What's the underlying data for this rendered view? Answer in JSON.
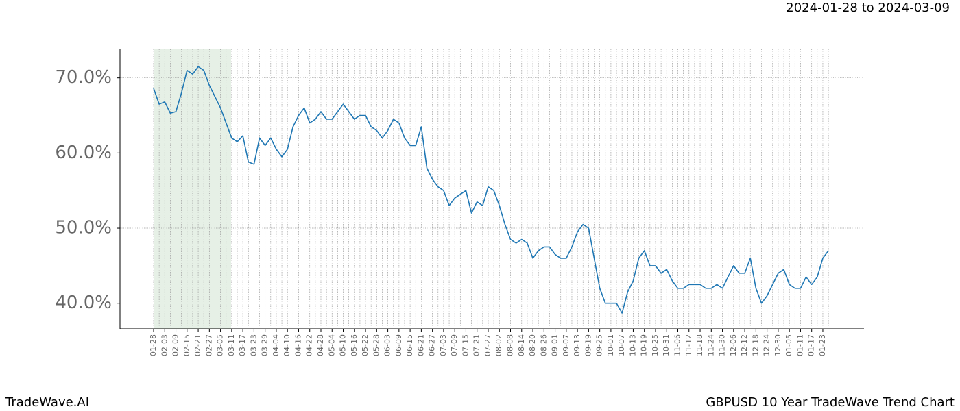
{
  "header": {
    "range": "2024-01-28 to 2024-03-09"
  },
  "footer": {
    "brand": "TradeWave.AI",
    "title": "GBPUSD 10 Year TradeWave Trend Chart"
  },
  "chart_data": {
    "type": "line",
    "color": "#1f77b4",
    "grid": true,
    "categories": [
      "01-28",
      null,
      "02-03",
      null,
      "02-09",
      null,
      "02-15",
      null,
      "02-21",
      null,
      "02-27",
      null,
      "03-05",
      null,
      "03-11",
      null,
      "03-17",
      null,
      "03-23",
      null,
      "03-29",
      null,
      "04-04",
      null,
      "04-10",
      null,
      "04-16",
      null,
      "04-22",
      null,
      "04-28",
      null,
      "05-04",
      null,
      "05-10",
      null,
      "05-16",
      null,
      "05-22",
      null,
      "05-28",
      null,
      "06-03",
      null,
      "06-09",
      null,
      "06-15",
      null,
      "06-21",
      null,
      "06-27",
      null,
      "07-03",
      null,
      "07-09",
      null,
      "07-15",
      null,
      "07-21",
      null,
      "07-27",
      null,
      "08-02",
      null,
      "08-08",
      null,
      "08-14",
      null,
      "08-20",
      null,
      "08-26",
      null,
      "09-01",
      null,
      "09-07",
      null,
      "09-13",
      null,
      "09-19",
      null,
      "09-25",
      null,
      "10-01",
      null,
      "10-07",
      null,
      "10-13",
      null,
      "10-19",
      null,
      "10-25",
      null,
      "10-31",
      null,
      "11-06",
      null,
      "11-12",
      null,
      "11-18",
      null,
      "11-24",
      null,
      "11-30",
      null,
      "12-06",
      null,
      "12-12",
      null,
      "12-18",
      null,
      "12-24",
      null,
      "12-30",
      null,
      "01-05",
      null,
      "01-11",
      null,
      "01-17",
      null,
      "01-23",
      null
    ],
    "values": [
      68.6,
      66.5,
      66.8,
      65.3,
      65.5,
      68,
      71,
      70.5,
      71.5,
      71,
      69,
      67.5,
      66,
      64,
      62,
      61.5,
      62.3,
      58.8,
      58.5,
      62,
      61,
      62,
      60.5,
      59.5,
      60.5,
      63.5,
      65,
      66,
      64,
      64.5,
      65.5,
      64.5,
      64.5,
      65.5,
      66.5,
      65.5,
      64.5,
      65,
      65,
      63.5,
      63,
      62,
      63,
      64.5,
      64,
      62,
      61,
      61,
      63.5,
      58,
      56.5,
      55.5,
      55,
      53,
      54,
      54.5,
      55,
      52,
      53.5,
      53,
      55.5,
      55,
      53,
      50.5,
      48.5,
      48,
      48.5,
      48,
      46,
      47,
      47.5,
      47.5,
      46.5,
      46,
      46,
      47.5,
      49.5,
      50.5,
      50,
      46,
      42,
      40,
      40,
      40,
      38.7,
      41.5,
      43,
      46,
      47,
      45,
      45,
      44,
      44.5,
      43,
      42,
      42,
      42.5,
      42.5,
      42.5,
      42,
      42,
      42.5,
      42,
      43.5,
      45,
      44,
      44,
      46,
      42,
      40,
      41,
      42.5,
      44,
      44.5,
      42.5,
      42,
      42,
      43.5,
      42.5,
      43.5,
      46,
      47
    ],
    "ylim": [
      36.6,
      73.8
    ],
    "yticks": [
      {
        "value": 40,
        "label": "40.0%"
      },
      {
        "value": 50,
        "label": "50.0%"
      },
      {
        "value": 60,
        "label": "60.0%"
      },
      {
        "value": 70,
        "label": "70.0%"
      }
    ]
  }
}
